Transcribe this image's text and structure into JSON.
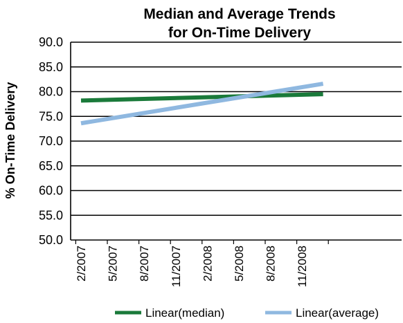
{
  "chart_data": {
    "type": "line",
    "title": [
      "Median and Average Trends",
      "for On-Time Delivery"
    ],
    "ylabel": "% On-Time Delivery",
    "xlabel": "",
    "ylim": [
      50,
      90
    ],
    "yticks": [
      "90.0",
      "85.0",
      "80.0",
      "75.0",
      "70.0",
      "65.0",
      "60.0",
      "55.0",
      "50.0"
    ],
    "categories": [
      "2/2007",
      "5/2007",
      "8/2007",
      "11/2007",
      "2/2008",
      "5/2008",
      "8/2008",
      "11/2008"
    ],
    "grid": "horizontal",
    "legend_position": "bottom",
    "series": [
      {
        "name": "Linear(median)",
        "color": "#1a7a3a",
        "x": [
          "2/2007",
          "1/2009"
        ],
        "values": [
          78.2,
          79.5
        ]
      },
      {
        "name": "Linear(average)",
        "color": "#8fb8e0",
        "x": [
          "2/2007",
          "1/2009"
        ],
        "values": [
          73.6,
          81.6
        ]
      }
    ]
  }
}
